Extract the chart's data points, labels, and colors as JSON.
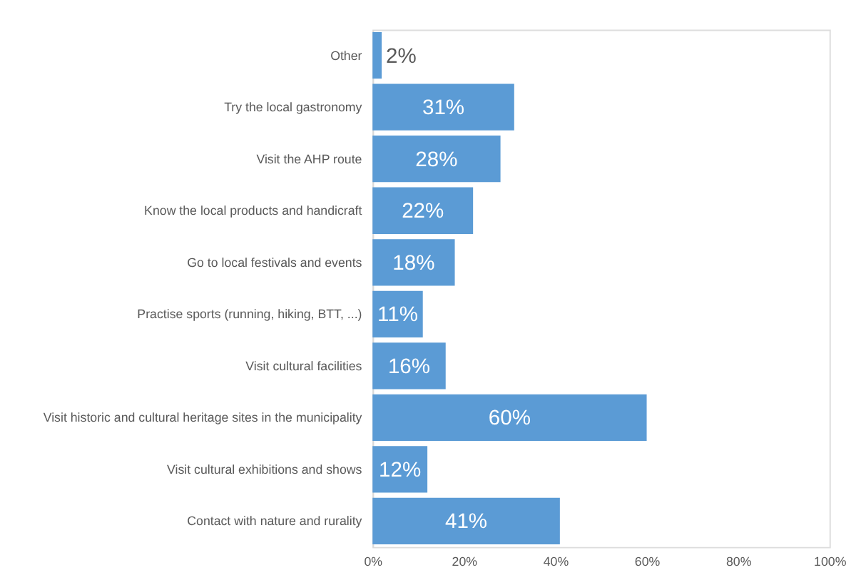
{
  "chart_data": {
    "type": "bar",
    "orientation": "horizontal",
    "categories": [
      "Other",
      "Try the local gastronomy",
      "Visit the AHP route",
      "Know the local products and handicraft",
      "Go to local festivals and events",
      "Practise sports (running, hiking, BTT, ...)",
      "Visit cultural facilities",
      "Visit historic and cultural heritage sites in the municipality",
      "Visit cultural exhibitions and shows",
      "Contact with nature and rurality"
    ],
    "values": [
      2,
      31,
      28,
      22,
      18,
      11,
      16,
      60,
      12,
      41
    ],
    "value_labels": [
      "2%",
      "31%",
      "28%",
      "22%",
      "18%",
      "11%",
      "16%",
      "60%",
      "12%",
      "41%"
    ],
    "color": "#5b9bd5",
    "xlim": [
      0,
      100
    ],
    "xticks": [
      {
        "value": 0,
        "label": "0%"
      },
      {
        "value": 20,
        "label": "20%"
      },
      {
        "value": 40,
        "label": "40%"
      },
      {
        "value": 60,
        "label": "60%"
      },
      {
        "value": 80,
        "label": "80%"
      },
      {
        "value": 100,
        "label": "100%"
      }
    ],
    "grid": false
  }
}
